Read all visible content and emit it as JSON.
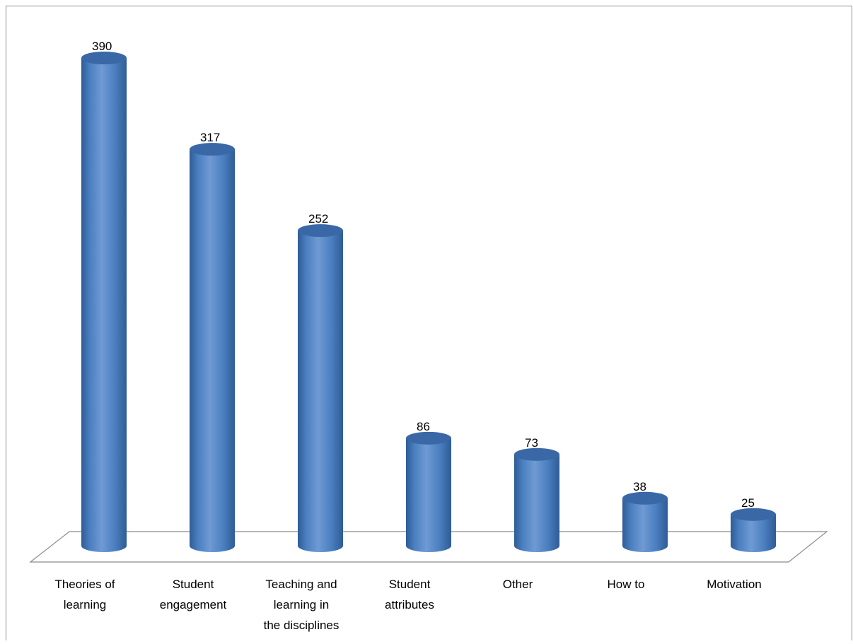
{
  "chart_data": {
    "type": "bar",
    "style": "3d-cylinder",
    "categories": [
      [
        "Theories of",
        "learning"
      ],
      [
        "Student",
        "engagement"
      ],
      [
        "Teaching and",
        "learning in",
        "the disciplines"
      ],
      [
        "Student",
        "attributes"
      ],
      [
        "Other"
      ],
      [
        "How to"
      ],
      [
        "Motivation"
      ]
    ],
    "values": [
      390,
      317,
      252,
      86,
      73,
      38,
      25
    ],
    "value_labels": [
      "390",
      "317",
      "252",
      "86",
      "73",
      "38",
      "25"
    ],
    "title": "",
    "xlabel": "",
    "ylabel": "",
    "ylim": [
      0,
      390
    ],
    "grid": false,
    "legend": "none"
  },
  "colors": {
    "bar_fill": "#4a7ebf",
    "bar_light": "#6f9ad4",
    "bar_dark": "#2e5c96",
    "bar_top": "#3a68a6",
    "floor_stroke": "#8c8c8c",
    "frame_stroke": "#8c8c8c"
  }
}
